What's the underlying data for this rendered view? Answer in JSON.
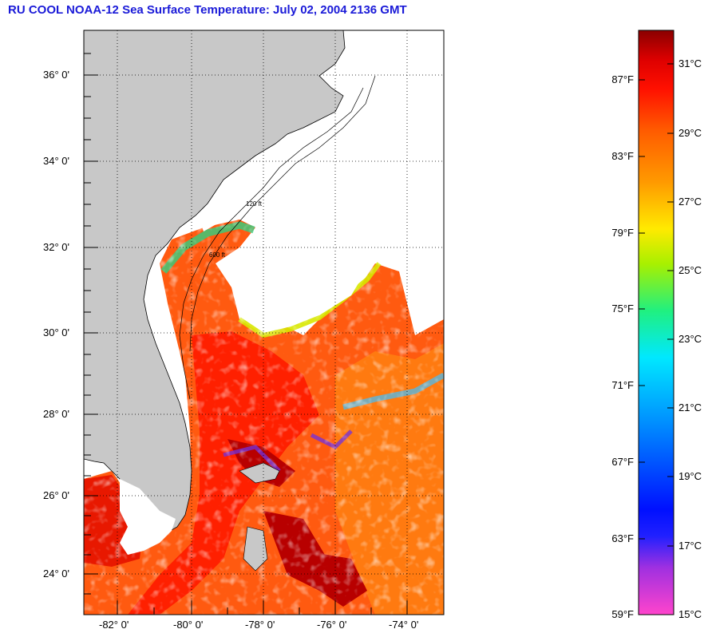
{
  "title": "RU COOL  NOAA-12  Sea Surface Temperature:  July 02, 2004 2136 GMT",
  "map": {
    "lat_labels": [
      "36° 0'",
      "34° 0'",
      "32° 0'",
      "30° 0'",
      "28° 0'",
      "26° 0'",
      "24° 0'"
    ],
    "lon_labels": [
      "-82° 0'",
      "-80° 0'",
      "-78° 0'",
      "-76° 0'",
      "-74° 0'"
    ],
    "lat_range": [
      23.0,
      37.0
    ],
    "lon_range": [
      -83.0,
      -73.0
    ],
    "gridlines": "dotted",
    "land_color": "#c8c8c8",
    "no_data_color": "#ffffff",
    "isobath_labels": [
      "120 ft",
      "600 ft"
    ]
  },
  "colorbar": {
    "units": [
      "°F",
      "°C"
    ],
    "range_c": [
      15,
      32
    ],
    "fahrenheit_labels": [
      "87°F",
      "83°F",
      "79°F",
      "75°F",
      "71°F",
      "67°F",
      "63°F",
      "59°F"
    ],
    "celsius_labels": [
      "31°C",
      "29°C",
      "27°C",
      "25°C",
      "23°C",
      "21°C",
      "19°C",
      "17°C",
      "15°C"
    ],
    "colors": [
      "#ff44cc",
      "#7a24e0",
      "#0010ff",
      "#0090ff",
      "#00e8ff",
      "#20f080",
      "#c8f000",
      "#ffea00",
      "#ff9a00",
      "#ff5a00",
      "#ff1000",
      "#dd0000",
      "#8a0000"
    ]
  }
}
